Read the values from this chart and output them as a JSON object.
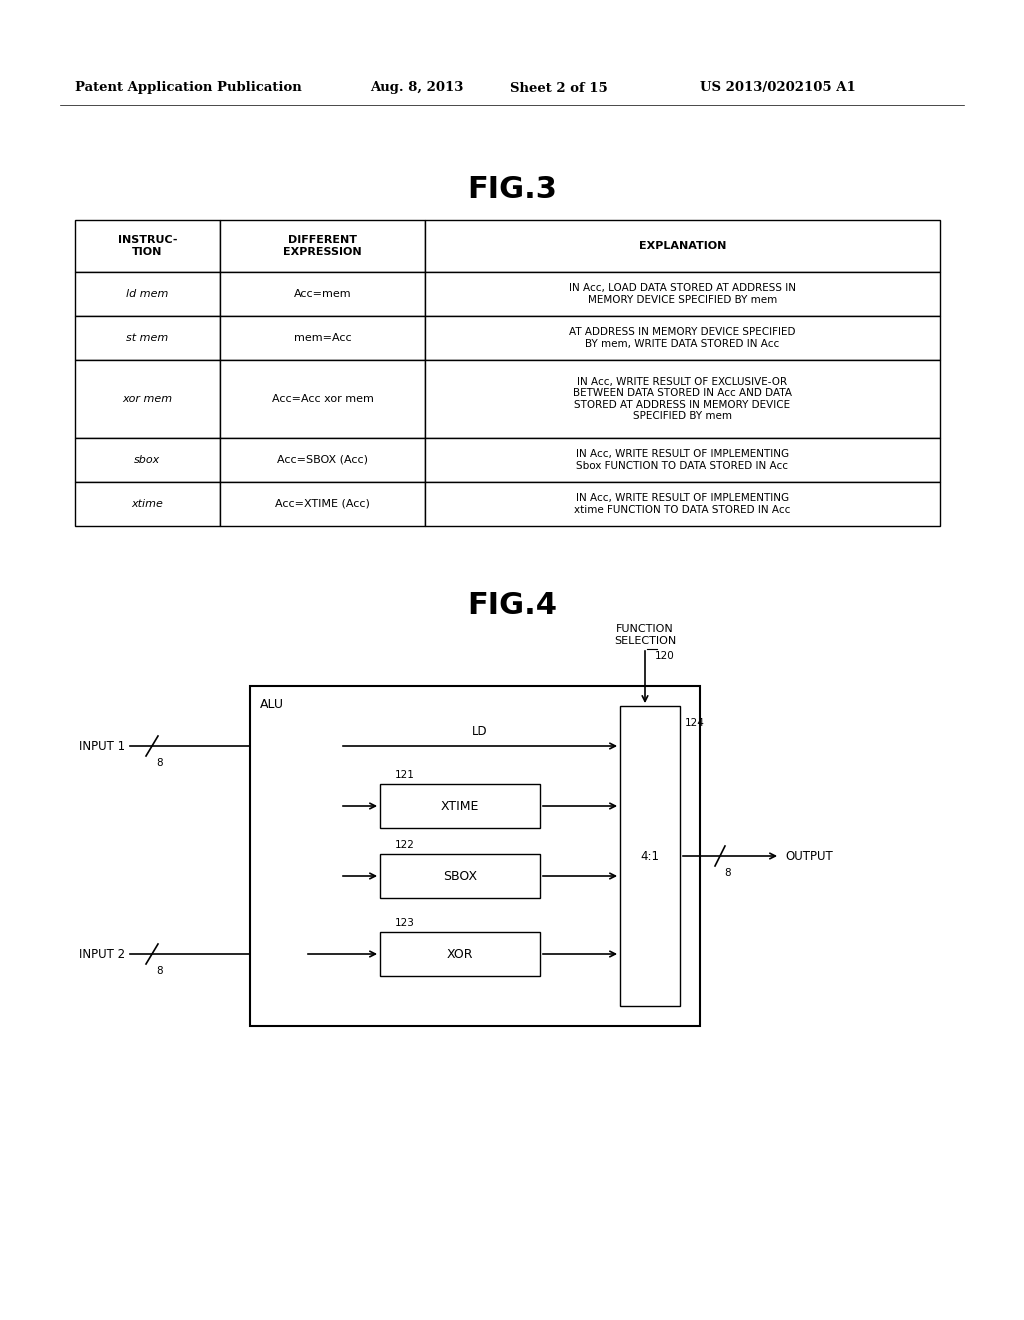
{
  "bg_color": "#ffffff",
  "header_text": "Patent Application Publication",
  "header_date": "Aug. 8, 2013",
  "header_sheet": "Sheet 2 of 15",
  "header_patent": "US 2013/0202105 A1",
  "fig3_title": "FIG.3",
  "fig4_title": "FIG.4",
  "table_headers": [
    "INSTRUC-\nTION",
    "DIFFERENT\nEXPRESSION",
    "EXPLANATION"
  ],
  "table_rows": [
    [
      "ld mem",
      "Acc=mem",
      "IN Acc, LOAD DATA STORED AT ADDRESS IN\nMEMORY DEVICE SPECIFIED BY mem"
    ],
    [
      "st mem",
      "mem=Acc",
      "AT ADDRESS IN MEMORY DEVICE SPECIFIED\nBY mem, WRITE DATA STORED IN Acc"
    ],
    [
      "xor mem",
      "Acc=Acc xor mem",
      "IN Acc, WRITE RESULT OF EXCLUSIVE-OR\nBETWEEN DATA STORED IN Acc AND DATA\nSTORED AT ADDRESS IN MEMORY DEVICE\nSPECIFIED BY mem"
    ],
    [
      "sbox",
      "Acc=SBOX (Acc)",
      "IN Acc, WRITE RESULT OF IMPLEMENTING\nSbox FUNCTION TO DATA STORED IN Acc"
    ],
    [
      "xtime",
      "Acc=XTIME (Acc)",
      "IN Acc, WRITE RESULT OF IMPLEMENTING\nxtime FUNCTION TO DATA STORED IN Acc"
    ]
  ]
}
